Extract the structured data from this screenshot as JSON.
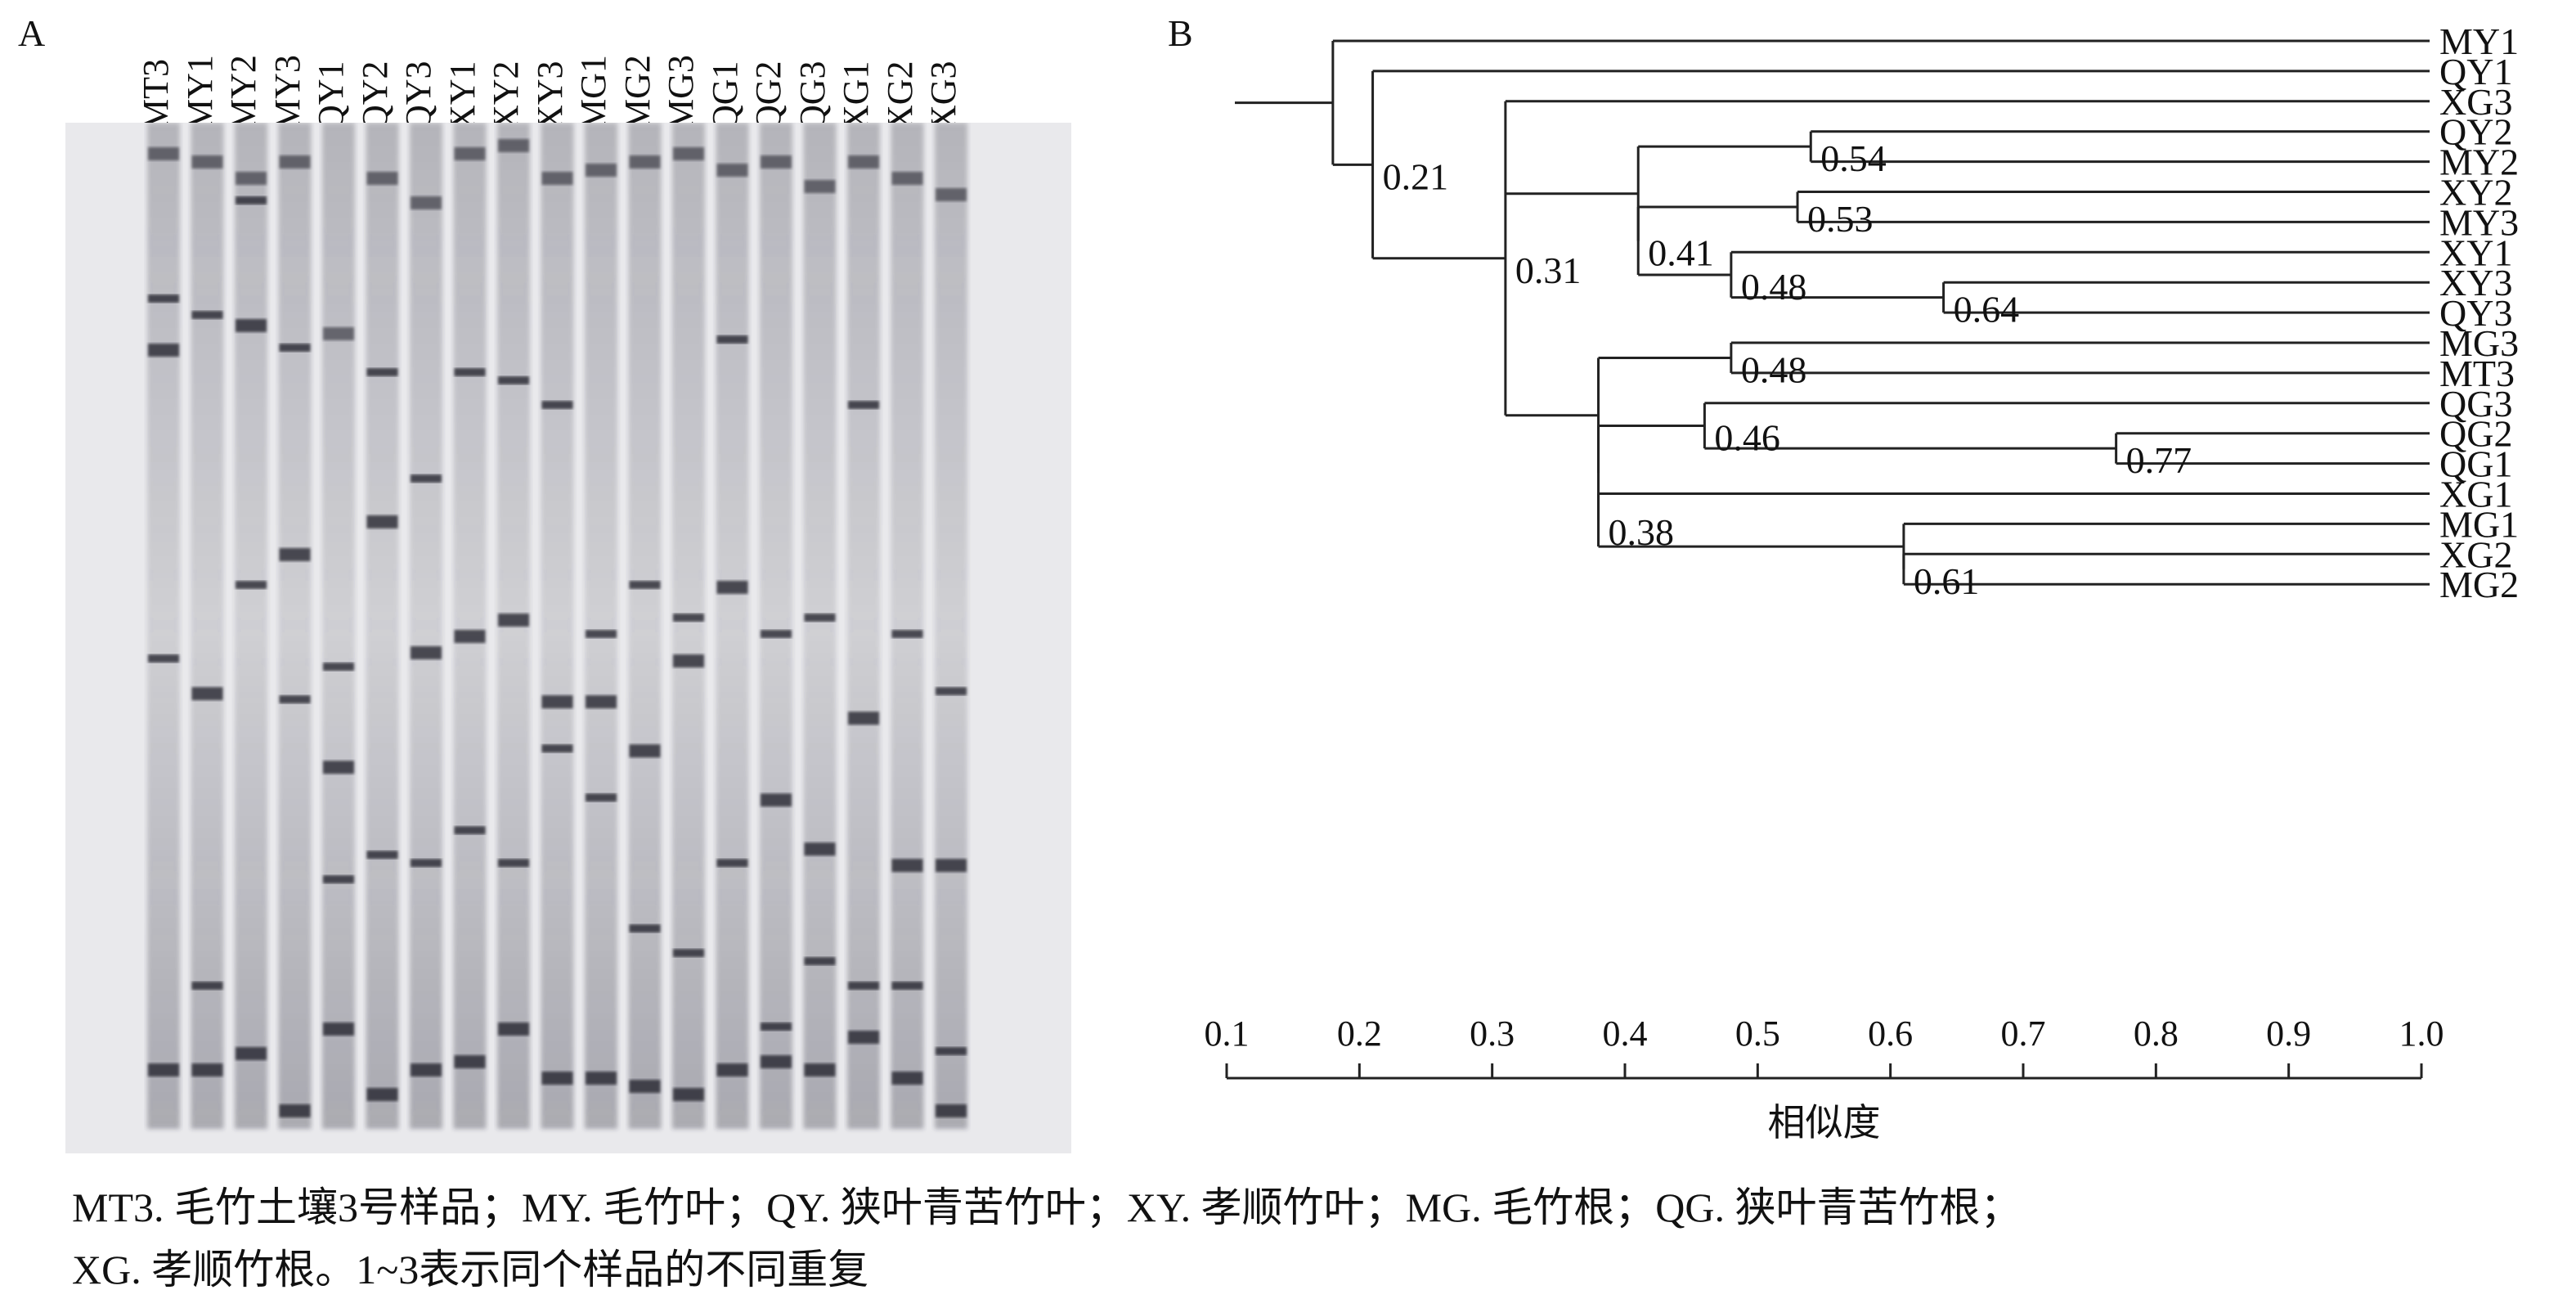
{
  "panel_a": {
    "letter": "A",
    "lanes": [
      "MT3",
      "MY1",
      "MY2",
      "MY3",
      "QY1",
      "QY2",
      "QY3",
      "XY1",
      "XY2",
      "XY3",
      "MG1",
      "MG2",
      "MG3",
      "QG1",
      "QG2",
      "QG3",
      "XG1",
      "XG2",
      "XG3"
    ]
  },
  "panel_b": {
    "letter": "B",
    "axis_label": "相似度",
    "ticks": [
      "0.1",
      "0.2",
      "0.3",
      "0.4",
      "0.5",
      "0.6",
      "0.7",
      "0.8",
      "0.9",
      "1.0"
    ],
    "leaves": [
      "MY1",
      "QY1",
      "XG3",
      "QY2",
      "MY2",
      "XY2",
      "MY3",
      "XY1",
      "XY3",
      "QY3",
      "MG3",
      "MT3",
      "QG3",
      "QG2",
      "QG1",
      "XG1",
      "MG1",
      "XG2",
      "MG2"
    ],
    "nodes": [
      {
        "value": 0.18,
        "label": ""
      },
      {
        "value": 0.21,
        "label": "0.21"
      },
      {
        "value": 0.31,
        "label": "0.31"
      },
      {
        "value": 0.54,
        "label": "0.54"
      },
      {
        "value": 0.53,
        "label": "0.53"
      },
      {
        "value": 0.41,
        "label": "0.41"
      },
      {
        "value": 0.48,
        "label": "0.48"
      },
      {
        "value": 0.64,
        "label": "0.64"
      },
      {
        "value": 0.48,
        "label": "0.48"
      },
      {
        "value": 0.38,
        "label": "0.38"
      },
      {
        "value": 0.46,
        "label": "0.46"
      },
      {
        "value": 0.77,
        "label": "0.77"
      },
      {
        "value": 0.61,
        "label": "0.61"
      }
    ]
  },
  "caption": {
    "line1": "MT3. 毛竹土壤3号样品；MY. 毛竹叶；QY. 狭叶青苦竹叶；XY. 孝顺竹叶；MG. 毛竹根；QG. 狭叶青苦竹根；",
    "line2": "XG. 孝顺竹根。1~3表示同个样品的不同重复"
  }
}
